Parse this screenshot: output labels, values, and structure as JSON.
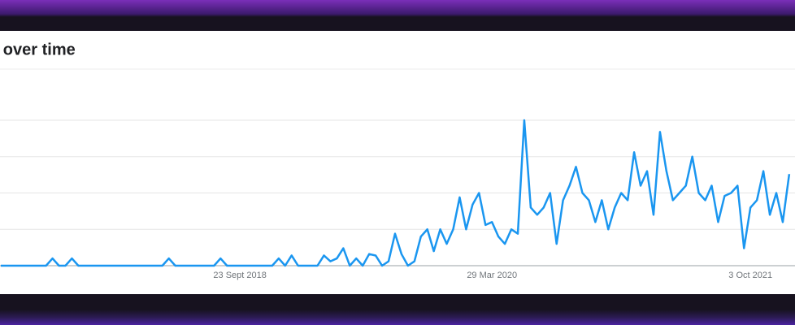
{
  "chart_data": {
    "type": "line",
    "title": "Interest over time",
    "categories": [
      null,
      null,
      null,
      null,
      null,
      null,
      null,
      null,
      null,
      null,
      null,
      null,
      null,
      null,
      null,
      null,
      null,
      null,
      null,
      null,
      null,
      null,
      null,
      null,
      null,
      null,
      null,
      null,
      null,
      null,
      null,
      null,
      null,
      null,
      null,
      null,
      null,
      "23 Sept 2018",
      null,
      null,
      null,
      null,
      null,
      null,
      null,
      null,
      null,
      null,
      null,
      null,
      null,
      null,
      null,
      null,
      null,
      null,
      null,
      null,
      null,
      null,
      null,
      null,
      null,
      null,
      null,
      null,
      null,
      null,
      null,
      null,
      null,
      null,
      null,
      null,
      null,
      null,
      "29 Mar 2020",
      null,
      null,
      null,
      null,
      null,
      null,
      null,
      null,
      null,
      null,
      null,
      null,
      null,
      null,
      null,
      null,
      null,
      null,
      null,
      null,
      null,
      null,
      null,
      null,
      null,
      null,
      null,
      null,
      null,
      null,
      null,
      null,
      null,
      null,
      null,
      null,
      null,
      null,
      null,
      "3 Oct 2021",
      null,
      null,
      null,
      null,
      null,
      null
    ],
    "values": [
      0,
      0,
      0,
      0,
      0,
      0,
      0,
      0,
      5,
      0,
      0,
      5,
      0,
      0,
      0,
      0,
      0,
      0,
      0,
      0,
      0,
      0,
      0,
      0,
      0,
      0,
      5,
      0,
      0,
      0,
      0,
      0,
      0,
      0,
      5,
      0,
      0,
      0,
      0,
      0,
      0,
      0,
      0,
      5,
      0,
      7,
      0,
      0,
      0,
      0,
      7,
      3,
      5,
      12,
      0,
      5,
      0,
      8,
      7,
      0,
      3,
      22,
      8,
      0,
      3,
      20,
      25,
      10,
      25,
      15,
      25,
      47,
      25,
      42,
      50,
      28,
      30,
      20,
      15,
      25,
      22,
      100,
      40,
      35,
      40,
      50,
      15,
      45,
      55,
      68,
      50,
      45,
      30,
      45,
      25,
      40,
      50,
      45,
      78,
      55,
      65,
      35,
      92,
      65,
      45,
      50,
      55,
      75,
      50,
      45,
      55,
      30,
      48,
      50,
      55,
      12,
      40,
      45,
      65,
      35,
      50,
      30,
      63
    ],
    "color": "#1a96f0",
    "ylim": [
      0,
      100
    ],
    "yticks": [
      0,
      25,
      50,
      75,
      100
    ],
    "grid": true
  }
}
